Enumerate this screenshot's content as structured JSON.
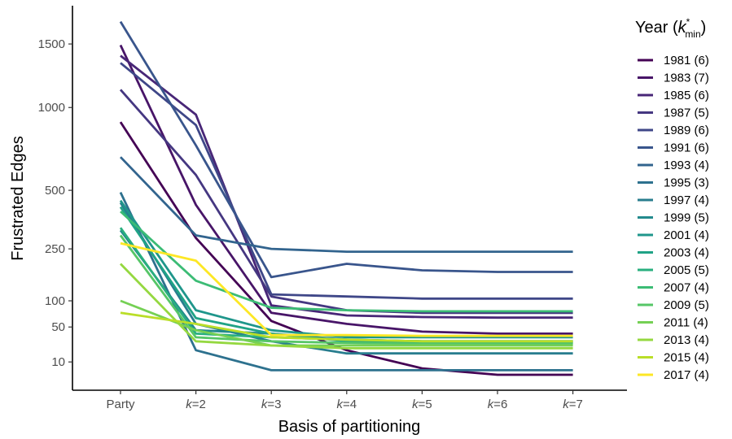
{
  "chart_data": {
    "type": "line",
    "xlabel": "Basis of partitioning",
    "ylabel": "Frustrated Edges",
    "y_scale": "sqrt",
    "ylim": [
      0,
      1850
    ],
    "y_ticks": [
      {
        "value": 10,
        "label": "10"
      },
      {
        "value": 50,
        "label": "50"
      },
      {
        "value": 100,
        "label": "100"
      },
      {
        "value": 250,
        "label": "250"
      },
      {
        "value": 500,
        "label": "500"
      },
      {
        "value": 1000,
        "label": "1000"
      },
      {
        "value": 1500,
        "label": "1500"
      }
    ],
    "categories": [
      {
        "prefix": "",
        "suffix": "Party"
      },
      {
        "prefix": "k",
        "suffix": "=2"
      },
      {
        "prefix": "k",
        "suffix": "=3"
      },
      {
        "prefix": "k",
        "suffix": "=4"
      },
      {
        "prefix": "k",
        "suffix": "=5"
      },
      {
        "prefix": "k",
        "suffix": "=6"
      },
      {
        "prefix": "k",
        "suffix": "=7"
      }
    ],
    "grid": false,
    "legend": {
      "title_prefix": "Year (",
      "title_k": "k",
      "title_sup": "*",
      "title_sub": "min",
      "title_suffix": ")",
      "placement": "right"
    },
    "series": [
      {
        "name": "1981 (6)",
        "color": "#440154",
        "values": [
          900,
          290,
          60,
          20,
          6,
          3,
          3
        ]
      },
      {
        "name": "1983 (7)",
        "color": "#481568",
        "values": [
          1490,
          430,
          75,
          55,
          43,
          40,
          40
        ]
      },
      {
        "name": "1985 (6)",
        "color": "#482677",
        "values": [
          1400,
          950,
          90,
          70,
          67,
          66,
          66
        ]
      },
      {
        "name": "1987 (5)",
        "color": "#453781",
        "values": [
          1130,
          580,
          110,
          80,
          75,
          75,
          75
        ]
      },
      {
        "name": "1989 (6)",
        "color": "#3F4788",
        "values": [
          1340,
          880,
          115,
          110,
          105,
          105,
          105
        ]
      },
      {
        "name": "1991 (6)",
        "color": "#39558C",
        "values": [
          1700,
          750,
          160,
          200,
          180,
          175,
          175
        ]
      },
      {
        "name": "1993 (4)",
        "color": "#32648E",
        "values": [
          680,
          300,
          250,
          240,
          240,
          240,
          240
        ]
      },
      {
        "name": "1995 (3)",
        "color": "#2D718E",
        "values": [
          490,
          20,
          5,
          5,
          5,
          5,
          5
        ]
      },
      {
        "name": "1997 (4)",
        "color": "#287D8E",
        "values": [
          440,
          55,
          30,
          17,
          17,
          17,
          17
        ]
      },
      {
        "name": "1999 (5)",
        "color": "#238A8D",
        "values": [
          320,
          45,
          40,
          32,
          30,
          30,
          30
        ]
      },
      {
        "name": "2001 (4)",
        "color": "#1F968B",
        "values": [
          450,
          80,
          45,
          35,
          35,
          35,
          35
        ]
      },
      {
        "name": "2003 (4)",
        "color": "#20A386",
        "values": [
          420,
          65,
          40,
          30,
          28,
          28,
          28
        ]
      },
      {
        "name": "2005 (5)",
        "color": "#29AF7F",
        "values": [
          330,
          40,
          35,
          32,
          30,
          30,
          30
        ]
      },
      {
        "name": "2007 (4)",
        "color": "#3CBC75",
        "values": [
          400,
          150,
          85,
          80,
          78,
          78,
          78
        ]
      },
      {
        "name": "2009 (5)",
        "color": "#56C667",
        "values": [
          300,
          35,
          30,
          28,
          27,
          27,
          27
        ]
      },
      {
        "name": "2011 (4)",
        "color": "#75D054",
        "values": [
          100,
          45,
          25,
          25,
          25,
          25,
          25
        ]
      },
      {
        "name": "2013 (4)",
        "color": "#95D840",
        "values": [
          200,
          30,
          25,
          22,
          22,
          22,
          22
        ]
      },
      {
        "name": "2015 (4)",
        "color": "#BADE28",
        "values": [
          75,
          55,
          35,
          32,
          30,
          30,
          30
        ]
      },
      {
        "name": "2017 (4)",
        "color": "#FDE725",
        "values": [
          270,
          210,
          38,
          38,
          37,
          37,
          37
        ]
      }
    ]
  }
}
